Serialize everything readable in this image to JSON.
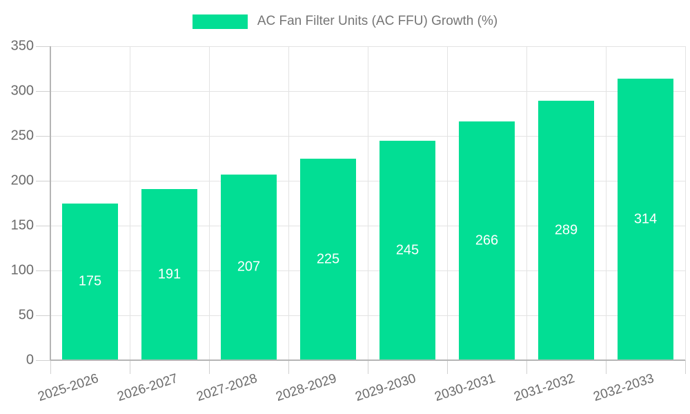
{
  "chart_data": {
    "type": "bar",
    "title": "AC Fan Filter Units (AC FFU) Growth (%)",
    "categories": [
      "2025-2026",
      "2026-2027",
      "2027-2028",
      "2028-2029",
      "2029-2030",
      "2030-2031",
      "2031-2032",
      "2032-2033"
    ],
    "values": [
      175,
      191,
      207,
      225,
      245,
      266,
      289,
      314
    ],
    "yticks": [
      0,
      50,
      100,
      150,
      200,
      250,
      300,
      350
    ],
    "ylim": [
      0,
      350
    ],
    "xlabel": "",
    "ylabel": "",
    "grid": true,
    "legend_position": "top",
    "bar_color": "#02DE94",
    "value_label_color": "#ffffff"
  }
}
